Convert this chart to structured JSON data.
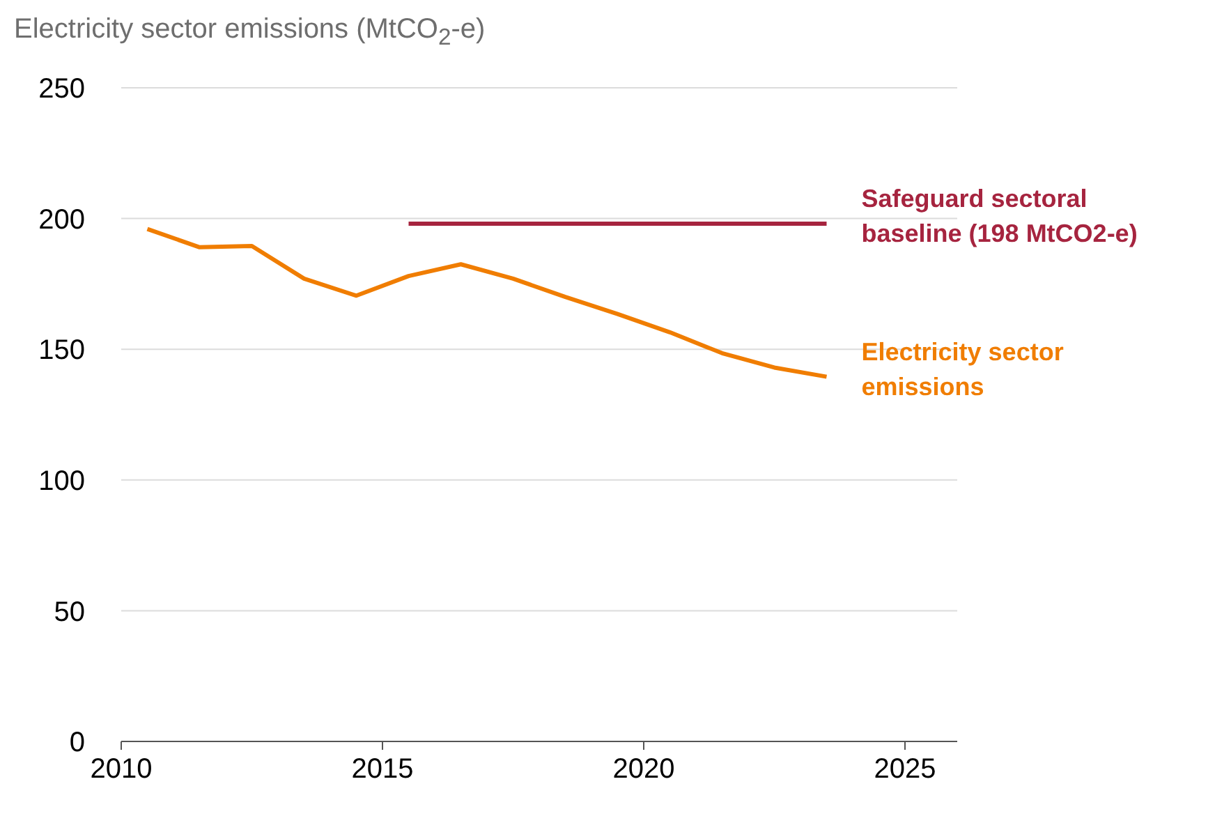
{
  "chart_data": {
    "type": "line",
    "title": "Electricity sector emissions (MtCO$_{2}$-e)",
    "xlim": [
      2010,
      2026
    ],
    "xticks": [
      2010,
      2015,
      2020,
      2025
    ],
    "ylim": [
      0,
      250
    ],
    "yticks": [
      0,
      50,
      100,
      150,
      200,
      250
    ],
    "grid": "y",
    "legend": false,
    "marker": "none",
    "line_style": "solid",
    "series": [
      {
        "name": "Electricity sector emissions",
        "color": "#f07d00",
        "x": [
          2010.5,
          2011.5,
          2012.5,
          2013.5,
          2014.5,
          2015.5,
          2016.5,
          2017.5,
          2018.5,
          2019.5,
          2020.5,
          2021.5,
          2022.5,
          2023.5
        ],
        "values": [
          196,
          189,
          189.5,
          177,
          170.5,
          178,
          182.5,
          177,
          170,
          163.5,
          156.5,
          148.5,
          143,
          139.5
        ]
      },
      {
        "name": "Safeguard sectoral baseline (198 MtCO2-e)",
        "color": "#a6243f",
        "x": [
          2015.5,
          2023.5
        ],
        "values": [
          198,
          198
        ]
      }
    ]
  }
}
